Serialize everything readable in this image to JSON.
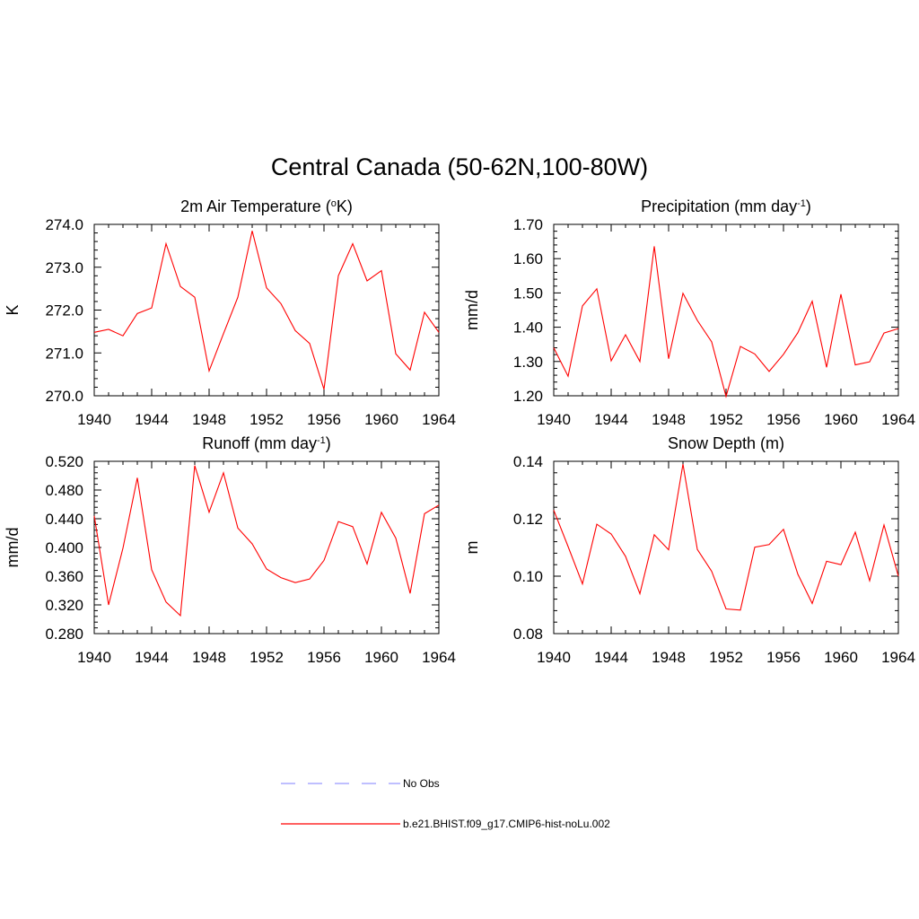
{
  "title": "Central Canada (50-62N,100-80W)",
  "colors": {
    "model": "#ff0000",
    "obs": "#9999ff",
    "axis": "#000000"
  },
  "legend": {
    "obs_label": "No Obs",
    "model_label": "b.e21.BHIST.f09_g17.CMIP6-hist-noLu.002"
  },
  "chart_data": [
    {
      "type": "line",
      "title": "2m Air Temperature (",
      "title_sup": "o",
      "title_tail": "K)",
      "ylabel": "K",
      "xlim": [
        1940,
        1964
      ],
      "ylim": [
        270.0,
        274.0
      ],
      "x_ticks": [
        1940,
        1944,
        1948,
        1952,
        1956,
        1960,
        1964
      ],
      "y_ticks": [
        "270.0",
        "271.0",
        "272.0",
        "273.0",
        "274.0"
      ],
      "grid": false,
      "series": [
        {
          "x": [
            1940,
            1941,
            1942,
            1943,
            1944,
            1945,
            1946,
            1947,
            1948,
            1949,
            1950,
            1951,
            1952,
            1953,
            1954,
            1955,
            1956,
            1957,
            1958,
            1959,
            1960,
            1961,
            1962,
            1963,
            1964
          ],
          "values": [
            271.48,
            271.55,
            271.4,
            271.92,
            272.05,
            273.55,
            272.55,
            272.3,
            270.58,
            271.45,
            272.3,
            273.85,
            272.52,
            272.15,
            271.52,
            271.22,
            270.15,
            272.8,
            273.55,
            272.68,
            272.92,
            270.98,
            270.6,
            271.95,
            271.48
          ]
        }
      ]
    },
    {
      "type": "line",
      "title": "Precipitation (mm day",
      "title_sup": "-1",
      "title_tail": ")",
      "ylabel": "mm/d",
      "xlim": [
        1940,
        1964
      ],
      "ylim": [
        1.2,
        1.7
      ],
      "x_ticks": [
        1940,
        1944,
        1948,
        1952,
        1956,
        1960,
        1964
      ],
      "y_ticks": [
        "1.20",
        "1.30",
        "1.40",
        "1.50",
        "1.60",
        "1.70"
      ],
      "grid": false,
      "series": [
        {
          "x": [
            1940,
            1941,
            1942,
            1943,
            1944,
            1945,
            1946,
            1947,
            1948,
            1949,
            1950,
            1951,
            1952,
            1953,
            1954,
            1955,
            1956,
            1957,
            1958,
            1959,
            1960,
            1961,
            1962,
            1963,
            1964
          ],
          "values": [
            1.34,
            1.257,
            1.462,
            1.512,
            1.302,
            1.378,
            1.3,
            1.636,
            1.308,
            1.499,
            1.42,
            1.357,
            1.198,
            1.344,
            1.322,
            1.271,
            1.321,
            1.384,
            1.476,
            1.283,
            1.496,
            1.29,
            1.299,
            1.383,
            1.396
          ]
        }
      ]
    },
    {
      "type": "line",
      "title": "Runoff (mm day",
      "title_sup": "-1",
      "title_tail": ")",
      "ylabel": "mm/d",
      "xlim": [
        1940,
        1964
      ],
      "ylim": [
        0.28,
        0.52
      ],
      "x_ticks": [
        1940,
        1944,
        1948,
        1952,
        1956,
        1960,
        1964
      ],
      "y_ticks": [
        "0.280",
        "0.320",
        "0.360",
        "0.400",
        "0.440",
        "0.480",
        "0.520"
      ],
      "grid": false,
      "series": [
        {
          "x": [
            1940,
            1941,
            1942,
            1943,
            1944,
            1945,
            1946,
            1947,
            1948,
            1949,
            1950,
            1951,
            1952,
            1953,
            1954,
            1955,
            1956,
            1957,
            1958,
            1959,
            1960,
            1961,
            1962,
            1963,
            1964
          ],
          "values": [
            0.444,
            0.32,
            0.399,
            0.497,
            0.369,
            0.324,
            0.305,
            0.514,
            0.449,
            0.504,
            0.427,
            0.405,
            0.37,
            0.358,
            0.351,
            0.356,
            0.382,
            0.436,
            0.429,
            0.377,
            0.449,
            0.413,
            0.336,
            0.447,
            0.459
          ]
        }
      ]
    },
    {
      "type": "line",
      "title": "Snow Depth (m)",
      "title_sup": "",
      "title_tail": "",
      "ylabel": "m",
      "xlim": [
        1940,
        1964
      ],
      "ylim": [
        0.08,
        0.14
      ],
      "x_ticks": [
        1940,
        1944,
        1948,
        1952,
        1956,
        1960,
        1964
      ],
      "y_ticks": [
        "0.08",
        "0.10",
        "0.12",
        "0.14"
      ],
      "grid": false,
      "series": [
        {
          "x": [
            1940,
            1941,
            1942,
            1943,
            1944,
            1945,
            1946,
            1947,
            1948,
            1949,
            1950,
            1951,
            1952,
            1953,
            1954,
            1955,
            1956,
            1957,
            1958,
            1959,
            1960,
            1961,
            1962,
            1963,
            1964
          ],
          "values": [
            0.123,
            0.1103,
            0.0973,
            0.1181,
            0.1147,
            0.1069,
            0.0939,
            0.1144,
            0.1092,
            0.139,
            0.1093,
            0.1017,
            0.0886,
            0.0882,
            0.1101,
            0.111,
            0.1163,
            0.1007,
            0.0905,
            0.1052,
            0.104,
            0.1153,
            0.0984,
            0.1178,
            0.1
          ]
        }
      ]
    }
  ]
}
